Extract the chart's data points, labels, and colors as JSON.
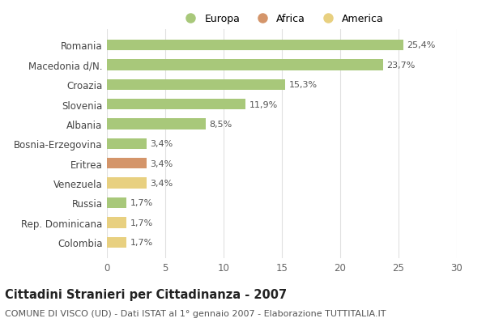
{
  "title": "Cittadini Stranieri per Cittadinanza - 2007",
  "subtitle": "COMUNE DI VISCO (UD) - Dati ISTAT al 1° gennaio 2007 - Elaborazione TUTTITALIA.IT",
  "categories": [
    "Colombia",
    "Rep. Dominicana",
    "Russia",
    "Venezuela",
    "Eritrea",
    "Bosnia-Erzegovina",
    "Albania",
    "Slovenia",
    "Croazia",
    "Macedonia d/N.",
    "Romania"
  ],
  "values": [
    1.7,
    1.7,
    1.7,
    3.4,
    3.4,
    3.4,
    8.5,
    11.9,
    15.3,
    23.7,
    25.4
  ],
  "labels": [
    "1,7%",
    "1,7%",
    "1,7%",
    "3,4%",
    "3,4%",
    "3,4%",
    "8,5%",
    "11,9%",
    "15,3%",
    "23,7%",
    "25,4%"
  ],
  "colors": [
    "#e8d080",
    "#e8d080",
    "#a8c87a",
    "#e8d080",
    "#d4956a",
    "#a8c87a",
    "#a8c87a",
    "#a8c87a",
    "#a8c87a",
    "#a8c87a",
    "#a8c87a"
  ],
  "legend": [
    {
      "label": "Europa",
      "color": "#a8c87a"
    },
    {
      "label": "Africa",
      "color": "#d4956a"
    },
    {
      "label": "America",
      "color": "#e8d080"
    }
  ],
  "xlim": [
    0,
    30
  ],
  "xticks": [
    0,
    5,
    10,
    15,
    20,
    25,
    30
  ],
  "background_color": "#ffffff",
  "grid_color": "#e0e0e0",
  "bar_height": 0.55,
  "title_fontsize": 10.5,
  "subtitle_fontsize": 8,
  "label_fontsize": 8,
  "tick_fontsize": 8.5,
  "legend_fontsize": 9
}
